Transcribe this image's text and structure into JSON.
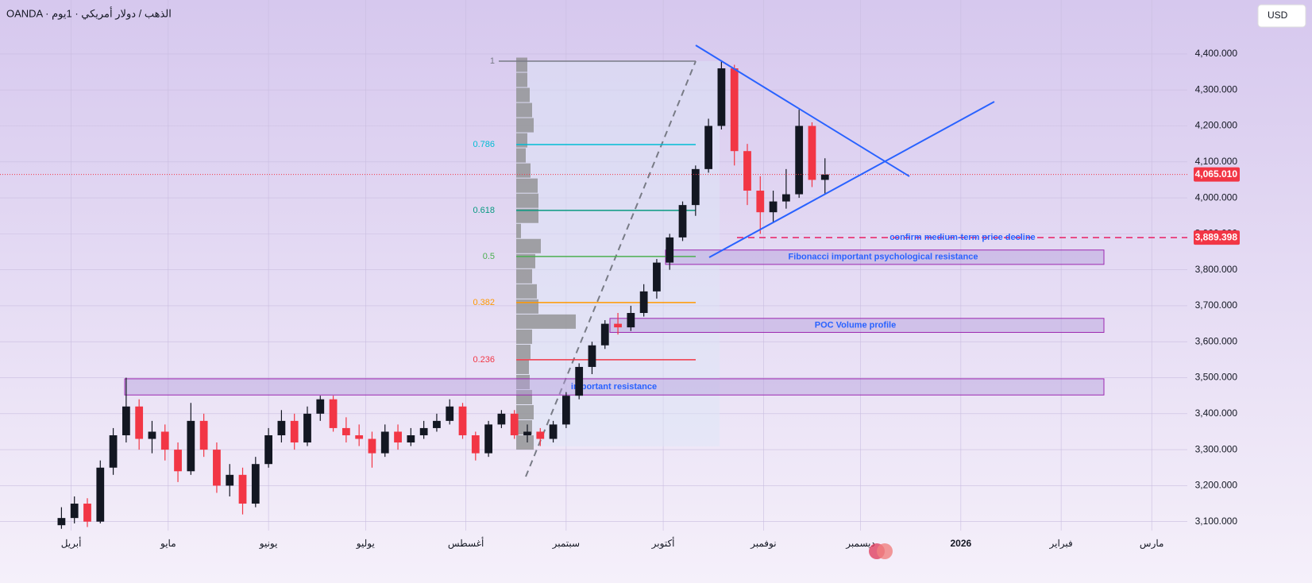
{
  "chart_data": {
    "type": "candlestick",
    "title": "OANDA · الذهب / دولار أمريكي · 1يوم",
    "currency": "USD",
    "series": [
      {
        "up_color": "#131722",
        "down_color": "#f23645",
        "x": [
          88,
          92,
          96,
          100,
          104,
          108,
          112,
          116,
          120,
          124,
          128,
          132,
          136,
          140,
          144,
          148,
          152,
          156,
          160,
          164,
          168,
          172,
          176,
          180,
          184,
          188,
          192,
          196,
          200,
          204,
          208,
          212,
          216,
          220,
          224,
          228,
          232,
          236,
          240,
          244,
          248,
          252,
          256,
          260,
          264,
          268,
          272,
          276,
          280,
          284,
          288,
          292,
          296,
          300,
          304,
          308,
          312,
          316,
          320,
          324
        ],
        "open": [
          3090,
          3110,
          3150,
          3100,
          3250,
          3340,
          3420,
          3330,
          3350,
          3300,
          3240,
          3380,
          3300,
          3200,
          3230,
          3150,
          3260,
          3340,
          3380,
          3320,
          3400,
          3440,
          3360,
          3340,
          3330,
          3290,
          3350,
          3320,
          3340,
          3360,
          3380,
          3420,
          3340,
          3290,
          3370,
          3400,
          3340,
          3350,
          3330,
          3370,
          3450,
          3530,
          3590,
          3650,
          3640,
          3680,
          3740,
          3820,
          3890,
          3980,
          4080,
          4200,
          4360,
          4130,
          4020,
          3960,
          3990,
          4010,
          4200,
          4050
        ],
        "high": [
          3140,
          3170,
          3165,
          3270,
          3360,
          3500,
          3440,
          3380,
          3370,
          3320,
          3430,
          3400,
          3320,
          3260,
          3250,
          3280,
          3360,
          3410,
          3400,
          3420,
          3450,
          3450,
          3390,
          3370,
          3350,
          3370,
          3370,
          3360,
          3380,
          3400,
          3440,
          3430,
          3350,
          3380,
          3410,
          3410,
          3370,
          3360,
          3380,
          3460,
          3540,
          3600,
          3660,
          3680,
          3700,
          3760,
          3830,
          3900,
          3990,
          4090,
          4220,
          4380,
          4370,
          4150,
          4060,
          4020,
          4080,
          4245,
          4210,
          4110
        ],
        "low": [
          3080,
          3095,
          3085,
          3095,
          3230,
          3320,
          3300,
          3290,
          3270,
          3210,
          3230,
          3280,
          3180,
          3170,
          3120,
          3140,
          3250,
          3320,
          3300,
          3310,
          3380,
          3350,
          3320,
          3310,
          3250,
          3280,
          3300,
          3310,
          3330,
          3350,
          3370,
          3330,
          3270,
          3280,
          3360,
          3330,
          3320,
          3310,
          3320,
          3360,
          3440,
          3510,
          3580,
          3620,
          3630,
          3670,
          3720,
          3800,
          3880,
          3950,
          4070,
          4190,
          4090,
          3980,
          3900,
          3930,
          3970,
          4000,
          4030,
          4010
        ],
        "close": [
          3110,
          3150,
          3100,
          3250,
          3340,
          3420,
          3330,
          3350,
          3300,
          3240,
          3380,
          3300,
          3200,
          3230,
          3150,
          3260,
          3340,
          3380,
          3320,
          3400,
          3440,
          3360,
          3340,
          3330,
          3290,
          3350,
          3320,
          3340,
          3360,
          3380,
          3420,
          3340,
          3290,
          3370,
          3400,
          3340,
          3350,
          3330,
          3370,
          3450,
          3530,
          3590,
          3650,
          3640,
          3680,
          3740,
          3820,
          3890,
          3980,
          4080,
          4200,
          4360,
          4130,
          4020,
          3960,
          3990,
          4010,
          4200,
          4050,
          4065
        ]
      }
    ],
    "ylim": [
      3075,
      4550
    ],
    "yticks": [
      {
        "value": 3100,
        "label": "3,100.000"
      },
      {
        "value": 3200,
        "label": "3,200.000"
      },
      {
        "value": 3300,
        "label": "3,300.000"
      },
      {
        "value": 3400,
        "label": "3,400.000"
      },
      {
        "value": 3500,
        "label": "3,500.000"
      },
      {
        "value": 3600,
        "label": "3,600.000"
      },
      {
        "value": 3700,
        "label": "3,700.000"
      },
      {
        "value": 3800,
        "label": "3,800.000"
      },
      {
        "value": 3900,
        "label": "3,900.000"
      },
      {
        "value": 4000,
        "label": "4,000.000"
      },
      {
        "value": 4100,
        "label": "4,100.000"
      },
      {
        "value": 4200,
        "label": "4,200.000"
      },
      {
        "value": 4300,
        "label": "4,300.000"
      },
      {
        "value": 4400,
        "label": "4,400.000"
      }
    ],
    "xlim": [
      69,
      436
    ],
    "xticks": [
      {
        "value": 91,
        "label": "أبريل"
      },
      {
        "value": 121,
        "label": "مايو"
      },
      {
        "value": 152,
        "label": "يونيو"
      },
      {
        "value": 182,
        "label": "يوليو"
      },
      {
        "value": 213,
        "label": "أغسطس"
      },
      {
        "value": 244,
        "label": "سبتمبر"
      },
      {
        "value": 274,
        "label": "أكتوبر"
      },
      {
        "value": 305,
        "label": "نوفمبر"
      },
      {
        "value": 335,
        "label": "ديسمبر"
      },
      {
        "value": 366,
        "label": "2026"
      },
      {
        "value": 397,
        "label": "فبراير"
      },
      {
        "value": 425,
        "label": "مارس"
      }
    ],
    "grid": true,
    "last_price": {
      "value": 4065.01,
      "label": "4,065.010"
    },
    "signal_line": {
      "value": 3889.398,
      "label": "3,889.398",
      "text": "confirm medium-term price decline"
    },
    "fib_levels": [
      {
        "level": 1,
        "price": 4380,
        "color": "#787b86"
      },
      {
        "level": 0.786,
        "price": 4148,
        "color": "#00bcd4"
      },
      {
        "level": 0.618,
        "price": 3965,
        "color": "#089981"
      },
      {
        "level": 0.5,
        "price": 3837,
        "color": "#4caf50"
      },
      {
        "level": 0.382,
        "price": 3709,
        "color": "#ff9800"
      },
      {
        "level": 0.236,
        "price": 3550,
        "color": "#f23645"
      }
    ],
    "volume_profile": {
      "prices": [
        4370,
        4328,
        4286,
        4244,
        4202,
        4160,
        4118,
        4076,
        4034,
        3992,
        3950,
        3908,
        3866,
        3824,
        3782,
        3740,
        3698,
        3656,
        3614,
        3572,
        3530,
        3488,
        3446,
        3404,
        3362,
        3320
      ],
      "volumes": [
        14,
        14,
        17,
        20,
        22,
        14,
        12,
        18,
        27,
        28,
        28,
        6,
        31,
        24,
        20,
        26,
        28,
        75,
        20,
        18,
        16,
        17,
        20,
        22,
        20,
        22
      ]
    },
    "zones": [
      {
        "label": "important resistance",
        "low": 3452,
        "high": 3497
      },
      {
        "label": "POC Volume profile",
        "low": 3626,
        "high": 3665
      },
      {
        "label": "Fibonacci important psychological resistance",
        "low": 3815,
        "high": 3855
      }
    ]
  }
}
